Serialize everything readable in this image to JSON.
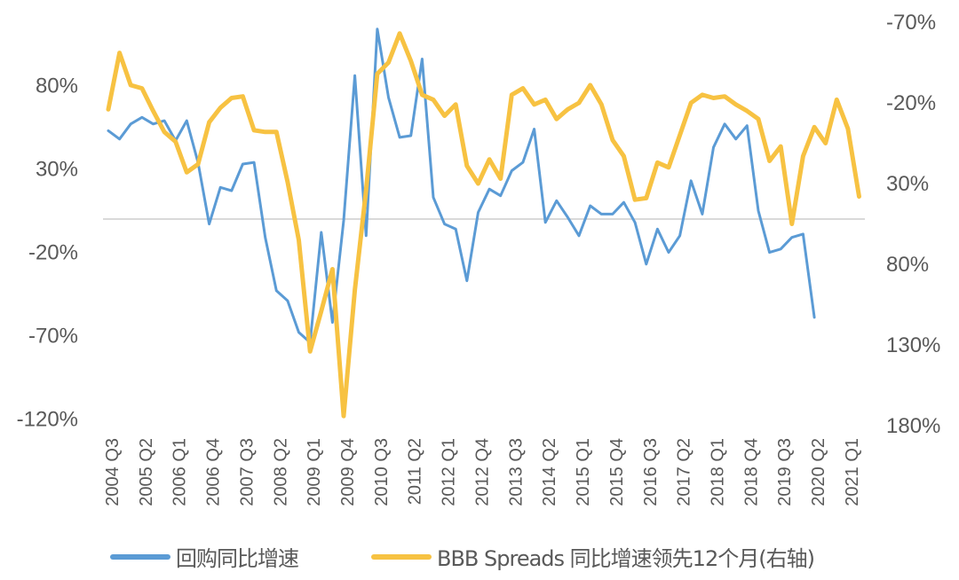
{
  "chart_data": {
    "type": "line",
    "title": "",
    "xlabel": "",
    "ylabel_left": "",
    "ylabel_right": "",
    "grid": false,
    "legend_position": "bottom",
    "y_left": {
      "ticks": [
        "80%",
        "30%",
        "-20%",
        "-70%",
        "-120%"
      ],
      "values": [
        80,
        30,
        -20,
        -70,
        -120
      ],
      "range": [
        -120,
        80
      ]
    },
    "y_right": {
      "ticks": [
        "-70%",
        "-20%",
        "30%",
        "80%",
        "130%",
        "180%"
      ],
      "values": [
        -70,
        -20,
        30,
        80,
        130,
        180
      ],
      "range": [
        -70,
        180
      ],
      "inverted": true
    },
    "x_tick_labels": [
      "2004 Q3",
      "2005 Q2",
      "2006 Q1",
      "2006 Q4",
      "2007 Q3",
      "2008 Q2",
      "2009 Q1",
      "2009 Q4",
      "2010 Q3",
      "2011 Q2",
      "2012 Q1",
      "2012 Q4",
      "2013 Q3",
      "2014 Q2",
      "2015 Q1",
      "2015 Q4",
      "2016 Q3",
      "2017 Q2",
      "2018 Q1",
      "2018 Q4",
      "2019 Q3",
      "2020 Q2",
      "2021 Q1"
    ],
    "x": [
      "2004 Q3",
      "2004 Q4",
      "2005 Q1",
      "2005 Q2",
      "2005 Q3",
      "2005 Q4",
      "2006 Q1",
      "2006 Q2",
      "2006 Q3",
      "2006 Q4",
      "2007 Q1",
      "2007 Q2",
      "2007 Q3",
      "2007 Q4",
      "2008 Q1",
      "2008 Q2",
      "2008 Q3",
      "2008 Q4",
      "2009 Q1",
      "2009 Q2",
      "2009 Q3",
      "2009 Q4",
      "2010 Q1",
      "2010 Q2",
      "2010 Q3",
      "2010 Q4",
      "2011 Q1",
      "2011 Q2",
      "2011 Q3",
      "2011 Q4",
      "2012 Q1",
      "2012 Q2",
      "2012 Q3",
      "2012 Q4",
      "2013 Q1",
      "2013 Q2",
      "2013 Q3",
      "2013 Q4",
      "2014 Q1",
      "2014 Q2",
      "2014 Q3",
      "2014 Q4",
      "2015 Q1",
      "2015 Q2",
      "2015 Q3",
      "2015 Q4",
      "2016 Q1",
      "2016 Q2",
      "2016 Q3",
      "2016 Q4",
      "2017 Q1",
      "2017 Q2",
      "2017 Q3",
      "2017 Q4",
      "2018 Q1",
      "2018 Q2",
      "2018 Q3",
      "2018 Q4",
      "2019 Q1",
      "2019 Q2",
      "2019 Q3",
      "2019 Q4",
      "2020 Q1",
      "2020 Q2",
      "2020 Q3",
      "2020 Q4",
      "2021 Q1",
      "2021 Q2"
    ],
    "series": [
      {
        "name": "回购同比增速",
        "axis": "left",
        "color": "#5B9BD5",
        "values": [
          53,
          48,
          57,
          61,
          57,
          59,
          47,
          59,
          34,
          -3,
          19,
          17,
          33,
          34,
          -11,
          -43,
          -49,
          -68,
          -74,
          -8,
          -62,
          -1,
          86,
          -10,
          114,
          73,
          49,
          50,
          96,
          13,
          -3,
          -6,
          -37,
          4,
          18,
          14,
          29,
          34,
          54,
          -2,
          11,
          1,
          -10,
          8,
          3,
          3,
          10,
          -2,
          -27,
          -6,
          -20,
          -10,
          23,
          3,
          43,
          57,
          48,
          56,
          5,
          -20,
          -18,
          -11,
          -9,
          -59,
          null,
          null,
          null,
          null
        ]
      },
      {
        "name": "BBB Spreads 同比增速领先12个月(右轴)",
        "axis": "right",
        "color": "#F7C242",
        "values": [
          -16,
          -51,
          -31,
          -29,
          -15,
          -2,
          4,
          23,
          18,
          -8,
          -17,
          -23,
          -24,
          -3,
          -2,
          -2,
          29,
          65,
          134,
          109,
          83,
          174,
          96,
          34,
          -38,
          -45,
          -63,
          -46,
          -25,
          -22,
          -12,
          -19,
          19,
          30,
          15,
          27,
          -25,
          -29,
          -19,
          -22,
          -10,
          -16,
          -20,
          -31,
          -19,
          3,
          13,
          40,
          39,
          17,
          20,
          0,
          -20,
          -25,
          -23,
          -24,
          -19,
          -15,
          -10,
          16,
          7,
          55,
          13,
          -5,
          5,
          -22,
          -4,
          38
        ]
      }
    ]
  },
  "legend": {
    "items": [
      {
        "label": "回购同比增速",
        "color": "#5B9BD5"
      },
      {
        "label": "BBB Spreads 同比增速领先12个月(右轴)",
        "color": "#F7C242"
      }
    ]
  },
  "style": {
    "zero_line_color": "#D9D9D9",
    "tick_color": "#595959"
  }
}
